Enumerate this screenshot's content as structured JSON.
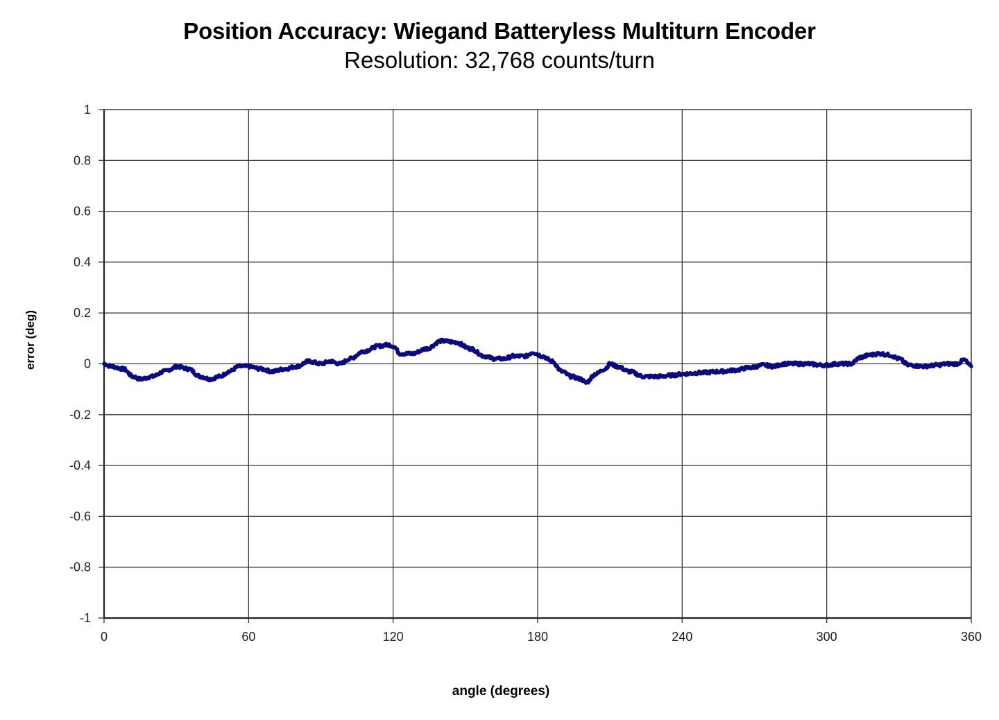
{
  "chart_data": {
    "type": "line",
    "title": "Position Accuracy: Wiegand Batteryless Multiturn Encoder",
    "subtitle": "Resolution: 32,768 counts/turn",
    "xlabel": "angle (degrees)",
    "ylabel": "error (deg)",
    "xlim": [
      0,
      360
    ],
    "ylim": [
      -1,
      1
    ],
    "x_ticks": [
      0,
      60,
      120,
      180,
      240,
      300,
      360
    ],
    "y_ticks": [
      1,
      0.8,
      0.6,
      0.4,
      0.2,
      0,
      -0.2,
      -0.4,
      -0.6,
      -0.8,
      -1
    ],
    "y_tick_labels": [
      "1",
      "0.8",
      "0.6",
      "0.4",
      "0.2",
      "0",
      "-0.2",
      "-0.4",
      "-0.6",
      "-0.8",
      "-1"
    ],
    "grid": true,
    "legend": null,
    "series": [
      {
        "name": "error",
        "color": "#0a0a80",
        "x": [
          0,
          3,
          8,
          12,
          15,
          20,
          25,
          28,
          30,
          35,
          40,
          44,
          48,
          52,
          56,
          60,
          65,
          70,
          75,
          80,
          85,
          90,
          94,
          98,
          102,
          108,
          114,
          118,
          120,
          123,
          128,
          134,
          140,
          146,
          152,
          158,
          162,
          166,
          170,
          175,
          178,
          182,
          186,
          190,
          194,
          198,
          200,
          204,
          208,
          210,
          213,
          218,
          224,
          230,
          236,
          240,
          248,
          256,
          262,
          268,
          274,
          278,
          282,
          288,
          292,
          298,
          300,
          304,
          310,
          314,
          318,
          322,
          326,
          330,
          334,
          340,
          346,
          350,
          354,
          357,
          360
        ],
        "y": [
          0.0,
          -0.01,
          -0.02,
          -0.05,
          -0.06,
          -0.05,
          -0.03,
          -0.02,
          -0.01,
          -0.02,
          -0.05,
          -0.06,
          -0.05,
          -0.03,
          -0.01,
          -0.01,
          -0.02,
          -0.03,
          -0.02,
          -0.01,
          0.01,
          0.0,
          0.01,
          0.0,
          0.02,
          0.05,
          0.07,
          0.075,
          0.07,
          0.04,
          0.04,
          0.06,
          0.09,
          0.085,
          0.06,
          0.03,
          0.02,
          0.02,
          0.03,
          0.03,
          0.045,
          0.03,
          0.01,
          -0.03,
          -0.05,
          -0.06,
          -0.075,
          -0.04,
          -0.02,
          0.0,
          -0.01,
          -0.03,
          -0.05,
          -0.05,
          -0.045,
          -0.04,
          -0.035,
          -0.03,
          -0.025,
          -0.015,
          -0.005,
          -0.01,
          0.0,
          0.0,
          0.0,
          -0.005,
          -0.005,
          0.0,
          0.0,
          0.025,
          0.035,
          0.04,
          0.035,
          0.02,
          -0.005,
          -0.01,
          -0.005,
          0.0,
          0.0,
          0.015,
          -0.01
        ]
      }
    ],
    "colors": {
      "line": "#0a0a80",
      "grid": "#3a3a3a",
      "axis": "#333333",
      "background": "#ffffff"
    }
  }
}
